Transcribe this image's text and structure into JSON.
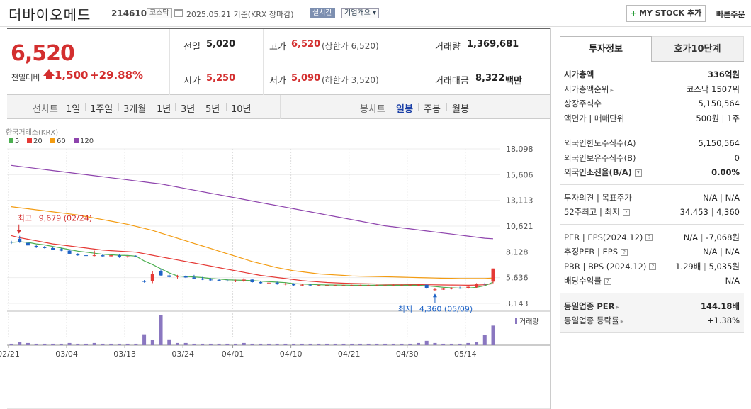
{
  "header": {
    "company_name": "더바이오메드",
    "code": "214610",
    "market": "코스닥",
    "date_text": "2025.05.21  기준(KRX 장마감)",
    "realtime": "실시간",
    "company_overview": "기업개요 ▾",
    "my_stock_plus": "+",
    "my_stock": "MY STOCK 추가",
    "quick_order": "빠른주문"
  },
  "price": {
    "current": "6,520",
    "change_label": "전일대비",
    "change_amount": "1,500",
    "change_pct": "+29.88%",
    "prev_close_label": "전일",
    "prev_close": "5,020",
    "open_label": "시가",
    "open": "5,250",
    "high_label": "고가",
    "high": "6,520",
    "upper_limit": "(상한가 6,520)",
    "low_label": "저가",
    "low": "5,090",
    "lower_limit": "(하한가 3,520)",
    "volume_label": "거래량",
    "volume": "1,369,681",
    "amount_label": "거래대금",
    "amount": "8,322",
    "amount_unit": "백만"
  },
  "period_bar": {
    "line_chart_label": "선차트",
    "periods": [
      "1일",
      "1주일",
      "3개월",
      "1년",
      "3년",
      "5년",
      "10년"
    ],
    "candle_label": "봉차트",
    "candles": [
      "일봉",
      "주봉",
      "월봉"
    ]
  },
  "chart_data": {
    "type": "candlestick",
    "source": "한국거래소(KRX)",
    "ma_legend": [
      {
        "name": "5",
        "color": "#4caf50"
      },
      {
        "name": "20",
        "color": "#e53935"
      },
      {
        "name": "60",
        "color": "#f39c12"
      },
      {
        "name": "120",
        "color": "#8e44ad"
      }
    ],
    "y_ticks": [
      "18,098",
      "15,606",
      "13,113",
      "10,621",
      "8,128",
      "5,636",
      "3,143"
    ],
    "y_tick_values": [
      18098,
      15606,
      13113,
      10621,
      8128,
      5636,
      3143
    ],
    "x_ticks": [
      {
        "label": "02/21",
        "idx": 0
      },
      {
        "label": "03/04",
        "idx": 7
      },
      {
        "label": "03/13",
        "idx": 14
      },
      {
        "label": "03/24",
        "idx": 21
      },
      {
        "label": "04/01",
        "idx": 27
      },
      {
        "label": "04/10",
        "idx": 34
      },
      {
        "label": "04/21",
        "idx": 41
      },
      {
        "label": "04/30",
        "idx": 48
      },
      {
        "label": "05/14",
        "idx": 55
      }
    ],
    "up_color": "#e53935",
    "down_color": "#1e63c6",
    "annotations": {
      "high_label": "최고",
      "high_text": "9,679 (02/24)",
      "high_value": 9679,
      "high_idx": 1,
      "low_label": "최저",
      "low_text": "4,360 (05/09)",
      "low_value": 4360,
      "low_idx": 51
    },
    "volume_label": "거래량",
    "candles": [
      {
        "o": 9100,
        "h": 9200,
        "l": 8900,
        "c": 9050
      },
      {
        "o": 9400,
        "h": 9679,
        "l": 9000,
        "c": 9100
      },
      {
        "o": 9000,
        "h": 9100,
        "l": 8700,
        "c": 8750
      },
      {
        "o": 8700,
        "h": 8800,
        "l": 8500,
        "c": 8600
      },
      {
        "o": 8600,
        "h": 8700,
        "l": 8450,
        "c": 8500
      },
      {
        "o": 8500,
        "h": 8600,
        "l": 8300,
        "c": 8350
      },
      {
        "o": 8400,
        "h": 8500,
        "l": 8200,
        "c": 8250
      },
      {
        "o": 8250,
        "h": 8350,
        "l": 7900,
        "c": 7950
      },
      {
        "o": 7900,
        "h": 8000,
        "l": 7750,
        "c": 7800
      },
      {
        "o": 7800,
        "h": 7900,
        "l": 7700,
        "c": 7750
      },
      {
        "o": 7750,
        "h": 8250,
        "l": 7700,
        "c": 7800
      },
      {
        "o": 7800,
        "h": 7900,
        "l": 7650,
        "c": 7700
      },
      {
        "o": 7700,
        "h": 7850,
        "l": 7600,
        "c": 7800
      },
      {
        "o": 7800,
        "h": 7900,
        "l": 7550,
        "c": 7600
      },
      {
        "o": 7650,
        "h": 7750,
        "l": 7550,
        "c": 7700
      },
      {
        "o": 7700,
        "h": 7800,
        "l": 7600,
        "c": 7650
      },
      {
        "o": 5300,
        "h": 5400,
        "l": 5150,
        "c": 5250
      },
      {
        "o": 5300,
        "h": 6300,
        "l": 5100,
        "c": 6000
      },
      {
        "o": 6300,
        "h": 6450,
        "l": 5750,
        "c": 5850
      },
      {
        "o": 5850,
        "h": 5950,
        "l": 5650,
        "c": 5700
      },
      {
        "o": 5700,
        "h": 5900,
        "l": 5550,
        "c": 5800
      },
      {
        "o": 5800,
        "h": 5850,
        "l": 5600,
        "c": 5650
      },
      {
        "o": 5650,
        "h": 5900,
        "l": 5550,
        "c": 5550
      },
      {
        "o": 5550,
        "h": 5700,
        "l": 5400,
        "c": 5450
      },
      {
        "o": 5450,
        "h": 5600,
        "l": 5350,
        "c": 5400
      },
      {
        "o": 5400,
        "h": 5550,
        "l": 5300,
        "c": 5350
      },
      {
        "o": 5350,
        "h": 5500,
        "l": 5250,
        "c": 5300
      },
      {
        "o": 5300,
        "h": 5450,
        "l": 5200,
        "c": 5350
      },
      {
        "o": 5350,
        "h": 5600,
        "l": 5200,
        "c": 5450
      },
      {
        "o": 5450,
        "h": 5500,
        "l": 5150,
        "c": 5200
      },
      {
        "o": 5200,
        "h": 5300,
        "l": 5050,
        "c": 5100
      },
      {
        "o": 5100,
        "h": 5250,
        "l": 5000,
        "c": 5150
      },
      {
        "o": 5150,
        "h": 5250,
        "l": 4950,
        "c": 5000
      },
      {
        "o": 5000,
        "h": 5150,
        "l": 4900,
        "c": 5050
      },
      {
        "o": 5050,
        "h": 5100,
        "l": 4850,
        "c": 4900
      },
      {
        "o": 4900,
        "h": 5000,
        "l": 4800,
        "c": 4950
      },
      {
        "o": 4950,
        "h": 5050,
        "l": 4850,
        "c": 4900
      },
      {
        "o": 4900,
        "h": 4950,
        "l": 4850,
        "c": 4900
      },
      {
        "o": 4900,
        "h": 4950,
        "l": 4850,
        "c": 4900
      },
      {
        "o": 4900,
        "h": 4950,
        "l": 4850,
        "c": 4900
      },
      {
        "o": 4900,
        "h": 4950,
        "l": 4850,
        "c": 4900
      },
      {
        "o": 4900,
        "h": 4950,
        "l": 4850,
        "c": 4900
      },
      {
        "o": 4900,
        "h": 4950,
        "l": 4850,
        "c": 4900
      },
      {
        "o": 4900,
        "h": 4950,
        "l": 4850,
        "c": 4900
      },
      {
        "o": 4900,
        "h": 4950,
        "l": 4850,
        "c": 4900
      },
      {
        "o": 4900,
        "h": 4950,
        "l": 4850,
        "c": 4900
      },
      {
        "o": 4900,
        "h": 4950,
        "l": 4850,
        "c": 4900
      },
      {
        "o": 4900,
        "h": 4950,
        "l": 4850,
        "c": 4900
      },
      {
        "o": 4900,
        "h": 4950,
        "l": 4850,
        "c": 4900
      },
      {
        "o": 4900,
        "h": 5000,
        "l": 4850,
        "c": 4950
      },
      {
        "o": 4950,
        "h": 4950,
        "l": 4550,
        "c": 4600
      },
      {
        "o": 4450,
        "h": 4600,
        "l": 4360,
        "c": 4500
      },
      {
        "o": 4500,
        "h": 4650,
        "l": 4450,
        "c": 4550
      },
      {
        "o": 4550,
        "h": 4700,
        "l": 4500,
        "c": 4650
      },
      {
        "o": 4650,
        "h": 4750,
        "l": 4550,
        "c": 4600
      },
      {
        "o": 4600,
        "h": 4800,
        "l": 4550,
        "c": 4750
      },
      {
        "o": 4700,
        "h": 5100,
        "l": 4650,
        "c": 5050
      },
      {
        "o": 5050,
        "h": 5150,
        "l": 4900,
        "c": 5020
      },
      {
        "o": 5250,
        "h": 6520,
        "l": 5090,
        "c": 6520
      }
    ],
    "volumes": [
      2,
      4,
      3,
      2,
      2,
      2,
      2,
      3,
      2,
      2,
      3,
      2,
      2,
      2,
      2,
      2,
      15,
      7,
      42,
      8,
      3,
      3,
      2,
      2,
      2,
      2,
      2,
      2,
      3,
      2,
      2,
      2,
      2,
      2,
      2,
      2,
      2,
      2,
      2,
      2,
      2,
      2,
      2,
      2,
      2,
      2,
      2,
      2,
      2,
      3,
      6,
      3,
      2,
      2,
      2,
      3,
      4,
      14,
      27
    ],
    "ma5": [
      9050,
      9100,
      9050,
      8900,
      8800,
      8650,
      8500,
      8350,
      8200,
      8100,
      8000,
      7900,
      7850,
      7800,
      7780,
      7720,
      7250,
      6900,
      6500,
      6100,
      5800,
      5750,
      5700,
      5650,
      5550,
      5500,
      5430,
      5400,
      5380,
      5350,
      5300,
      5250,
      5200,
      5150,
      5050,
      5020,
      4980,
      4950,
      4930,
      4920,
      4910,
      4900,
      4900,
      4900,
      4900,
      4900,
      4900,
      4900,
      4900,
      4900,
      4850,
      4780,
      4700,
      4650,
      4620,
      4630,
      4700,
      4850,
      5200
    ],
    "ma20": [
      9700,
      9500,
      9350,
      9200,
      9050,
      8900,
      8800,
      8700,
      8600,
      8500,
      8400,
      8300,
      8250,
      8200,
      8150,
      8100,
      7950,
      7800,
      7650,
      7500,
      7350,
      7200,
      7050,
      6900,
      6750,
      6600,
      6450,
      6300,
      6150,
      6000,
      5850,
      5750,
      5650,
      5550,
      5450,
      5350,
      5280,
      5220,
      5170,
      5130,
      5100,
      5080,
      5060,
      5040,
      5020,
      5000,
      4990,
      4980,
      4970,
      4960,
      4950,
      4940,
      4930,
      4920,
      4910,
      4900,
      4920,
      4950,
      5050
    ],
    "ma60": [
      12500,
      12400,
      12300,
      12200,
      12100,
      12000,
      11900,
      11800,
      11700,
      11550,
      11400,
      11250,
      11100,
      10950,
      10800,
      10600,
      10400,
      10200,
      9950,
      9700,
      9450,
      9200,
      8950,
      8700,
      8450,
      8200,
      7950,
      7700,
      7450,
      7200,
      7000,
      6800,
      6600,
      6450,
      6300,
      6200,
      6100,
      6000,
      5950,
      5900,
      5850,
      5800,
      5780,
      5760,
      5740,
      5720,
      5700,
      5680,
      5660,
      5640,
      5620,
      5600,
      5580,
      5570,
      5560,
      5550,
      5550,
      5560,
      5600
    ],
    "ma120": [
      16500,
      16400,
      16300,
      16200,
      16100,
      16000,
      15900,
      15800,
      15700,
      15600,
      15500,
      15400,
      15300,
      15200,
      15100,
      15000,
      14900,
      14800,
      14700,
      14550,
      14400,
      14250,
      14100,
      13950,
      13800,
      13650,
      13500,
      13350,
      13200,
      13050,
      12900,
      12750,
      12600,
      12450,
      12300,
      12150,
      12000,
      11850,
      11700,
      11550,
      11400,
      11250,
      11100,
      10950,
      10800,
      10650,
      10550,
      10450,
      10350,
      10250,
      10150,
      10050,
      9950,
      9850,
      9750,
      9650,
      9550,
      9450,
      9400
    ]
  },
  "right_panel": {
    "tab_invest": "투자정보",
    "tab_quote": "호가10단계",
    "market_cap_label": "시가총액",
    "market_cap": "336억원",
    "market_cap_rank_label": "시가총액순위",
    "market_cap_rank": "코스닥 1507위",
    "listed_shares_label": "상장주식수",
    "listed_shares": "5,150,564",
    "face_value_label": "액면가 | 매매단위",
    "face_value": "500원",
    "trade_unit": "1주",
    "foreign_limit_label": "외국인한도주식수(A)",
    "foreign_limit": "5,150,564",
    "foreign_hold_label": "외국인보유주식수(B)",
    "foreign_hold": "0",
    "foreign_ratio_label": "외국인소진율(B/A)",
    "foreign_ratio": "0.00%",
    "opinion_label": "투자의견 | 목표주가",
    "opinion": "N/A",
    "target": "N/A",
    "week52_label": "52주최고 | 최저",
    "week52_high": "34,453",
    "week52_low": "4,360",
    "per_label": "PER | EPS(2024.12)",
    "per": "N/A",
    "eps": "-7,068원",
    "est_label": "추정PER | EPS",
    "est_per": "N/A",
    "est_eps": "N/A",
    "pbr_label": "PBR | BPS (2024.12)",
    "pbr": "1.29배",
    "bps": "5,035원",
    "dividend_label": "배당수익률",
    "dividend": "N/A",
    "sector_per_label": "동일업종 PER",
    "sector_per": "144.18배",
    "sector_chg_label": "동일업종 등락률",
    "sector_chg": "+1.38%"
  }
}
